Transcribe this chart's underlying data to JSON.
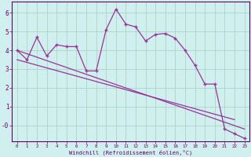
{
  "xlabel": "Windchill (Refroidissement éolien,°C)",
  "background_color": "#cff0ee",
  "line_color": "#993399",
  "x_data": [
    0,
    1,
    2,
    3,
    4,
    5,
    6,
    7,
    8,
    9,
    10,
    11,
    12,
    13,
    14,
    15,
    16,
    17,
    18,
    19,
    20,
    21,
    22,
    23
  ],
  "y_data": [
    4.0,
    3.5,
    4.7,
    3.7,
    4.3,
    4.2,
    4.2,
    2.9,
    2.9,
    5.1,
    6.2,
    5.4,
    5.25,
    4.5,
    4.85,
    4.9,
    4.65,
    4.0,
    3.2,
    2.2,
    2.2,
    -0.2,
    -0.45,
    -0.7
  ],
  "trend1_x": [
    0,
    23
  ],
  "trend1_y": [
    4.0,
    -0.2
  ],
  "trend2_x": [
    0,
    22
  ],
  "trend2_y": [
    3.5,
    0.3
  ],
  "xlim": [
    -0.5,
    23.5
  ],
  "ylim": [
    -0.85,
    6.6
  ],
  "yticks": [
    0,
    1,
    2,
    3,
    4,
    5,
    6
  ],
  "ytick_labels": [
    "-0",
    "1",
    "2",
    "3",
    "4",
    "5",
    "6"
  ],
  "xticks": [
    0,
    1,
    2,
    3,
    4,
    5,
    6,
    7,
    8,
    9,
    10,
    11,
    12,
    13,
    14,
    15,
    16,
    17,
    18,
    19,
    20,
    21,
    22,
    23
  ]
}
